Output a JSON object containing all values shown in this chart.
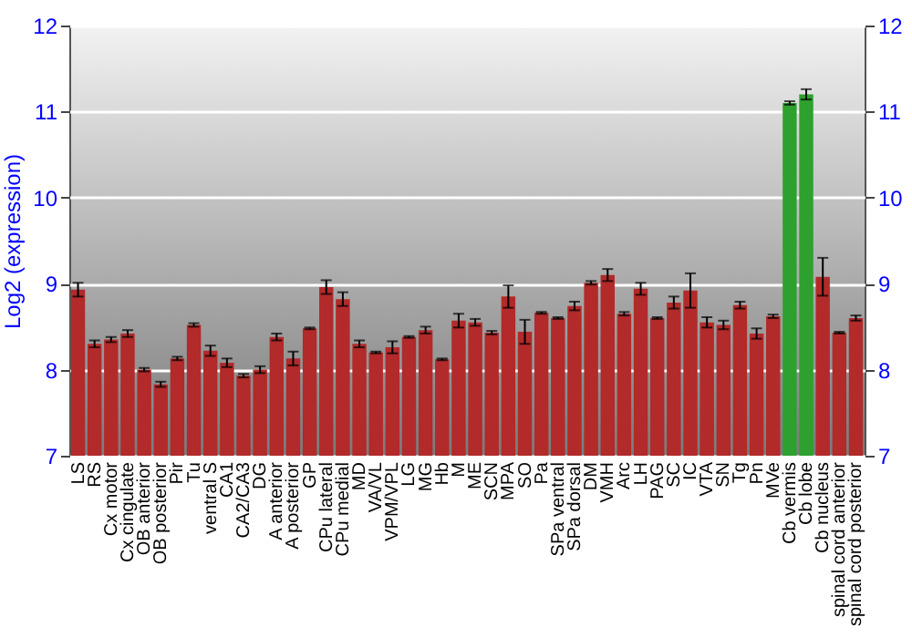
{
  "chart_data": {
    "type": "bar",
    "ylabel": "Log2 (expression)",
    "categories": [
      "LS",
      "RS",
      "Cx motor",
      "Cx cingulate",
      "OB anterior",
      "OB posterior",
      "Pir",
      "Tu",
      "ventral S",
      "CA1",
      "CA2/CA3",
      "DG",
      "A anterior",
      "A posterior",
      "GP",
      "CPu lateral",
      "CPu medial",
      "MD",
      "VA/VL",
      "VPM/VPL",
      "LG",
      "MG",
      "Hb",
      "M",
      "ME",
      "SCN",
      "MPA",
      "SO",
      "Pa",
      "SPa ventral",
      "SPa dorsal",
      "DM",
      "VMH",
      "Arc",
      "LH",
      "PAG",
      "SC",
      "IC",
      "VTA",
      "SN",
      "Tg",
      "Pn",
      "MVe",
      "Cb vermis",
      "Cb lobe",
      "Cb nucleus",
      "spinal cord anterior",
      "spinal cord posterior"
    ],
    "values": [
      8.93,
      8.3,
      8.35,
      8.42,
      8.0,
      7.83,
      8.13,
      8.52,
      8.22,
      8.08,
      7.93,
      8.0,
      8.38,
      8.13,
      8.48,
      8.96,
      8.82,
      8.3,
      8.2,
      8.26,
      8.38,
      8.46,
      8.12,
      8.57,
      8.55,
      8.43,
      8.85,
      8.44,
      8.66,
      8.6,
      8.74,
      9.01,
      9.1,
      8.65,
      8.94,
      8.6,
      8.78,
      8.92,
      8.55,
      8.52,
      8.75,
      8.42,
      8.62,
      11.1,
      11.2,
      9.08,
      8.43,
      8.6
    ],
    "errors": [
      0.08,
      0.04,
      0.03,
      0.04,
      0.02,
      0.03,
      0.02,
      0.02,
      0.06,
      0.05,
      0.02,
      0.04,
      0.04,
      0.08,
      0.01,
      0.08,
      0.08,
      0.04,
      0.01,
      0.07,
      0.01,
      0.04,
      0.01,
      0.08,
      0.04,
      0.02,
      0.13,
      0.14,
      0.01,
      0.01,
      0.05,
      0.02,
      0.07,
      0.02,
      0.07,
      0.01,
      0.07,
      0.2,
      0.06,
      0.05,
      0.04,
      0.06,
      0.02,
      0.02,
      0.06,
      0.22,
      0.01,
      0.03
    ],
    "colors": [
      "#b22a2a",
      "#b22a2a",
      "#b22a2a",
      "#b22a2a",
      "#b22a2a",
      "#b22a2a",
      "#b22a2a",
      "#b22a2a",
      "#b22a2a",
      "#b22a2a",
      "#b22a2a",
      "#b22a2a",
      "#b22a2a",
      "#b22a2a",
      "#b22a2a",
      "#b22a2a",
      "#b22a2a",
      "#b22a2a",
      "#b22a2a",
      "#b22a2a",
      "#b22a2a",
      "#b22a2a",
      "#b22a2a",
      "#b22a2a",
      "#b22a2a",
      "#b22a2a",
      "#b22a2a",
      "#b22a2a",
      "#b22a2a",
      "#b22a2a",
      "#b22a2a",
      "#b22a2a",
      "#b22a2a",
      "#b22a2a",
      "#b22a2a",
      "#b22a2a",
      "#b22a2a",
      "#b22a2a",
      "#b22a2a",
      "#b22a2a",
      "#b22a2a",
      "#b22a2a",
      "#b22a2a",
      "#2ea02e",
      "#2ea02e",
      "#b22a2a",
      "#b22a2a",
      "#b22a2a"
    ],
    "ylim": [
      7,
      12
    ],
    "yticks": [
      7,
      8,
      9,
      10,
      11,
      12
    ],
    "y2lim": [
      7,
      12
    ],
    "y2ticks": [
      7,
      8,
      9,
      10,
      11,
      12
    ],
    "grid": "y"
  }
}
